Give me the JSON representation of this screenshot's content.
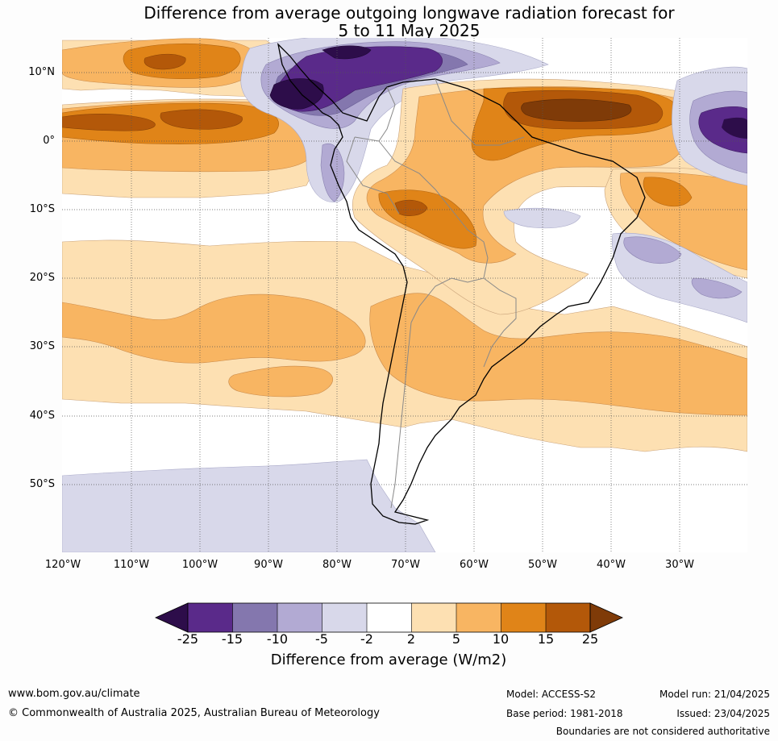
{
  "title_line1": "Difference from average outgoing longwave radiation forecast for",
  "title_line2": "5 to 11 May 2025",
  "lat_labels": [
    "10°N",
    "0°",
    "10°S",
    "20°S",
    "30°S",
    "40°S",
    "50°S"
  ],
  "lon_labels": [
    "120°W",
    "110°W",
    "100°W",
    "90°W",
    "80°W",
    "70°W",
    "60°W",
    "50°W",
    "40°W",
    "30°W"
  ],
  "colorbar": {
    "ticks": [
      "-25",
      "-15",
      "-10",
      "-5",
      "-2",
      "2",
      "5",
      "10",
      "15",
      "25"
    ],
    "title": "Difference from average (W/m2)",
    "colors": {
      "lt_-25": "#2d0d4a",
      "-25_-15": "#5a2a8a",
      "-15_-10": "#8477ae",
      "-10_-5": "#b2aad3",
      "-5_-2": "#d8d8ea",
      "-2_2": "#ffffff",
      "2_5": "#fde0b2",
      "5_10": "#f8b562",
      "10_15": "#e08418",
      "15_25": "#b35809",
      "gt_25": "#7f3b08"
    }
  },
  "footer": {
    "url": "www.bom.gov.au/climate",
    "copyright": "© Commonwealth of Australia 2025, Australian Bureau of Meteorology",
    "model": "Model: ACCESS-S2",
    "base_period": "Base period: 1981-2018",
    "model_run": "Model run: 21/04/2025",
    "issued": "Issued: 23/04/2025",
    "disclaimer": "Boundaries are not considered authoritative"
  }
}
